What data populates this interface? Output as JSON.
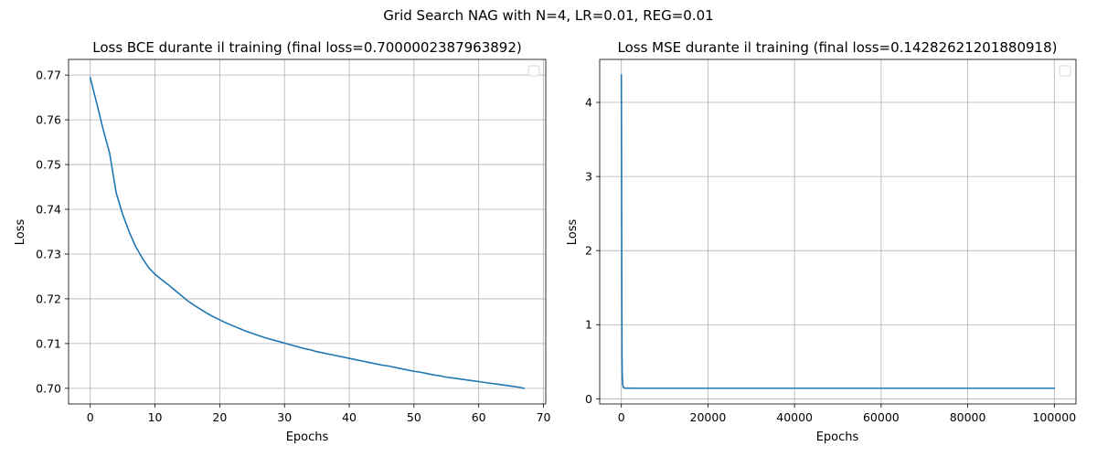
{
  "figure": {
    "suptitle": "Grid Search NAG with N=4, LR=0.01, REG=0.01"
  },
  "chart_data": [
    {
      "type": "line",
      "title": "Loss BCE durante il training (final loss=0.7000002387963892)",
      "xlabel": "Epochs",
      "ylabel": "Loss",
      "xlim": [
        -3.35,
        70.35
      ],
      "ylim": [
        0.6965,
        0.7735
      ],
      "xticks": [
        0,
        10,
        20,
        30,
        40,
        50,
        60,
        70
      ],
      "yticks": [
        0.7,
        0.71,
        0.72,
        0.73,
        0.74,
        0.75,
        0.76,
        0.77
      ],
      "ytick_labels": [
        "0.70",
        "0.71",
        "0.72",
        "0.73",
        "0.74",
        "0.75",
        "0.76",
        "0.77"
      ],
      "grid": true,
      "legend": "upper right (empty)",
      "color": "#1f77b4",
      "series": [
        {
          "x": [
            0,
            1,
            2,
            3,
            4,
            5,
            6,
            7,
            8,
            9,
            10,
            11,
            12,
            13,
            14,
            15,
            16,
            17,
            18,
            19,
            20,
            21,
            22,
            23,
            24,
            25,
            26,
            27,
            28,
            29,
            30,
            31,
            32,
            33,
            34,
            35,
            36,
            37,
            38,
            39,
            40,
            41,
            42,
            43,
            44,
            45,
            46,
            47,
            48,
            49,
            50,
            51,
            52,
            53,
            54,
            55,
            56,
            57,
            58,
            59,
            60,
            61,
            62,
            63,
            64,
            65,
            66,
            67
          ],
          "y": [
            0.7694,
            0.7637,
            0.7578,
            0.7525,
            0.7437,
            0.7389,
            0.735,
            0.7317,
            0.7292,
            0.727,
            0.7255,
            0.7243,
            0.7232,
            0.722,
            0.7208,
            0.7196,
            0.7186,
            0.7177,
            0.7168,
            0.716,
            0.7153,
            0.7146,
            0.714,
            0.7134,
            0.7128,
            0.7123,
            0.7118,
            0.7113,
            0.7109,
            0.7105,
            0.7101,
            0.7097,
            0.7093,
            0.7089,
            0.7086,
            0.7082,
            0.7079,
            0.7076,
            0.7073,
            0.707,
            0.7067,
            0.7064,
            0.7061,
            0.7058,
            0.7055,
            0.7052,
            0.705,
            0.7047,
            0.7044,
            0.7041,
            0.7038,
            0.7036,
            0.7033,
            0.703,
            0.7028,
            0.7025,
            0.7023,
            0.7021,
            0.7019,
            0.7017,
            0.7015,
            0.7013,
            0.7011,
            0.7009,
            0.7007,
            0.7005,
            0.7003,
            0.7
          ]
        }
      ]
    },
    {
      "type": "line",
      "title": "Loss MSE durante il training (final loss=0.14282621201880918)",
      "xlabel": "Epochs",
      "ylabel": "Loss",
      "xlim": [
        -5000,
        105000
      ],
      "ylim": [
        -0.07,
        4.58
      ],
      "xticks": [
        0,
        20000,
        40000,
        60000,
        80000,
        100000
      ],
      "yticks": [
        0,
        1,
        2,
        3,
        4
      ],
      "grid": true,
      "legend": "upper right (empty)",
      "color": "#1f77b4",
      "series": [
        {
          "x": [
            0,
            50,
            100,
            150,
            200,
            300,
            500,
            1000,
            5000,
            20000,
            40000,
            60000,
            80000,
            100000
          ],
          "y": [
            4.37,
            3.2,
            1.5,
            0.6,
            0.35,
            0.2,
            0.15,
            0.143,
            0.1428,
            0.1428,
            0.1428,
            0.1428,
            0.1428,
            0.1428
          ]
        }
      ]
    }
  ]
}
